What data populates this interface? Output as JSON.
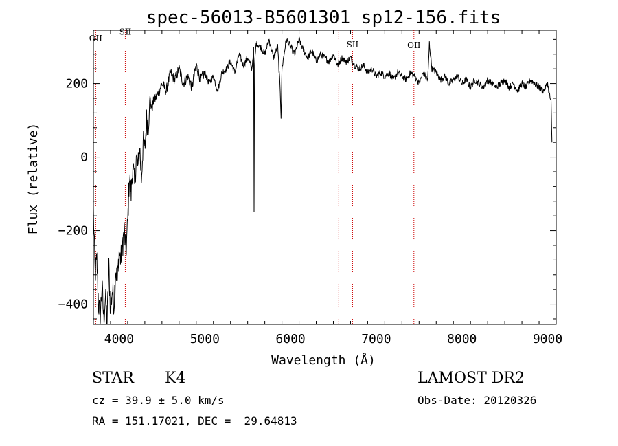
{
  "chart_data": {
    "type": "line",
    "title": "spec-56013-B5601301_sp12-156.fits",
    "xlabel": "Wavelength (Å)",
    "ylabel": "Flux (relative)",
    "xlim": [
      3700,
      9100
    ],
    "ylim": [
      -455,
      345
    ],
    "xticks": [
      4000,
      5000,
      6000,
      7000,
      8000,
      9000
    ],
    "yticks": [
      -400,
      -200,
      0,
      200
    ],
    "grid": false,
    "series": [
      {
        "color": "#000000",
        "x": [
          3700,
          3720,
          3740,
          3760,
          3780,
          3800,
          3820,
          3840,
          3860,
          3880,
          3900,
          3920,
          3940,
          3960,
          3980,
          4000,
          4020,
          4040,
          4060,
          4080,
          4100,
          4120,
          4140,
          4160,
          4180,
          4200,
          4220,
          4240,
          4260,
          4280,
          4300,
          4320,
          4340,
          4360,
          4380,
          4400,
          4450,
          4500,
          4550,
          4600,
          4650,
          4700,
          4750,
          4800,
          4850,
          4900,
          4950,
          5000,
          5050,
          5100,
          5150,
          5200,
          5250,
          5300,
          5350,
          5400,
          5450,
          5500,
          5550,
          5570,
          5575,
          5580,
          5600,
          5650,
          5700,
          5750,
          5800,
          5850,
          5880,
          5890,
          5900,
          5950,
          6000,
          6050,
          6100,
          6150,
          6200,
          6250,
          6300,
          6350,
          6400,
          6450,
          6500,
          6550,
          6600,
          6650,
          6700,
          6750,
          6800,
          6850,
          6900,
          6950,
          7000,
          7050,
          7100,
          7150,
          7200,
          7250,
          7300,
          7350,
          7400,
          7450,
          7500,
          7550,
          7600,
          7610,
          7620,
          7650,
          7700,
          7750,
          7800,
          7850,
          7900,
          7950,
          8000,
          8050,
          8100,
          8150,
          8200,
          8250,
          8300,
          8350,
          8400,
          8450,
          8500,
          8550,
          8600,
          8650,
          8700,
          8750,
          8800,
          8850,
          8900,
          8950,
          9000,
          9020,
          9040,
          9050
        ],
        "y": [
          -150,
          -320,
          -280,
          -400,
          -430,
          -350,
          -440,
          -380,
          -450,
          -300,
          -420,
          -360,
          -400,
          -300,
          -340,
          -260,
          -280,
          -240,
          -200,
          -260,
          -180,
          -50,
          -100,
          -20,
          -80,
          0,
          -30,
          30,
          -60,
          40,
          20,
          100,
          90,
          160,
          130,
          150,
          170,
          200,
          180,
          230,
          210,
          240,
          200,
          220,
          190,
          250,
          210,
          230,
          200,
          220,
          180,
          230,
          240,
          260,
          230,
          280,
          250,
          270,
          240,
          300,
          -150,
          250,
          310,
          300,
          280,
          320,
          270,
          300,
          180,
          110,
          240,
          320,
          300,
          280,
          320,
          290,
          270,
          290,
          260,
          280,
          270,
          260,
          280,
          250,
          270,
          260,
          270,
          250,
          240,
          250,
          230,
          240,
          220,
          230,
          220,
          230,
          210,
          230,
          220,
          210,
          230,
          220,
          200,
          230,
          210,
          250,
          310,
          240,
          230,
          210,
          220,
          200,
          210,
          220,
          200,
          210,
          190,
          210,
          200,
          190,
          210,
          200,
          190,
          200,
          210,
          190,
          200,
          180,
          200,
          190,
          210,
          200,
          190,
          180,
          200,
          170,
          150,
          40
        ]
      }
    ],
    "lines": [
      {
        "label": "OII",
        "x": 3727,
        "label_y": 315
      },
      {
        "label": "SII",
        "x": 4072,
        "label_y": 333
      },
      {
        "label": "",
        "x": 6563,
        "label_y": null
      },
      {
        "label": "SII",
        "x": 6724,
        "label_y": 298
      },
      {
        "label": "OII",
        "x": 7440,
        "label_y": 296
      }
    ],
    "line_color": "#cc0000"
  },
  "info": {
    "object_class": "STAR",
    "subclass": "K4",
    "survey": "LAMOST DR2",
    "cz": "cz = 39.9 ± 5.0 km/s",
    "obs_date": "Obs-Date: 20120326",
    "coords": "RA = 151.17021, DEC =  29.64813"
  }
}
